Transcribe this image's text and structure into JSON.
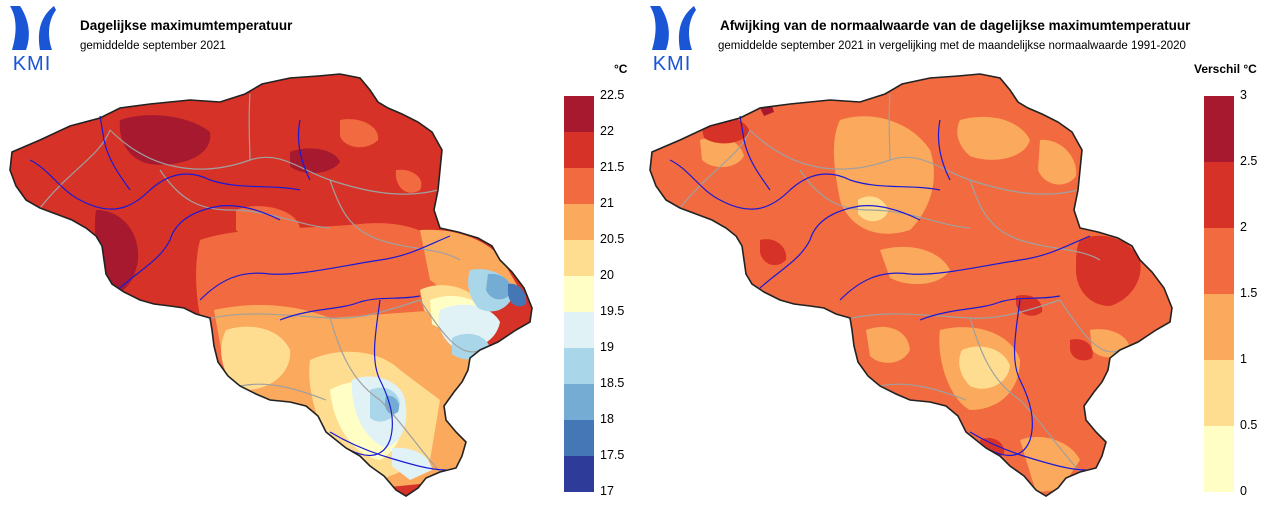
{
  "left": {
    "logo_text": "KMI",
    "title": "Dagelijkse maximumtemperatuur",
    "subtitle": "gemiddelde september 2021",
    "unit": "°C",
    "legend": {
      "labels": [
        "22.5",
        "22",
        "21.5",
        "21",
        "20.5",
        "20",
        "19.5",
        "19",
        "18.5",
        "18",
        "17.5",
        "17"
      ],
      "colors": [
        "#a6192e",
        "#d73227",
        "#f26a3f",
        "#fba95c",
        "#fedd90",
        "#ffffc5",
        "#e1f2f7",
        "#a9d6e8",
        "#75acd3",
        "#4576b6",
        "#2f3b99"
      ]
    }
  },
  "right": {
    "logo_text": "KMI",
    "title": "Afwijking van de normaalwaarde van de dagelijkse maximumtemperatuur",
    "subtitle": "gemiddelde september 2021 in vergelijking met de maandelijkse normaalwaarde 1991-2020",
    "unit": "Verschil °C",
    "legend": {
      "labels": [
        "3",
        "2.5",
        "2",
        "1.5",
        "1",
        "0.5",
        "0"
      ],
      "colors": [
        "#a6192e",
        "#d73227",
        "#f26a3f",
        "#fba95c",
        "#fedd90",
        "#ffffc5"
      ]
    }
  },
  "map_colors": {
    "dark_red": "#a6192e",
    "red": "#d73227",
    "orange": "#f26a3f",
    "light_orange": "#fba95c",
    "pale": "#fedd90",
    "cream": "#ffffc5",
    "ice": "#e1f2f7",
    "light_blue": "#a9d6e8",
    "mid_blue": "#75acd3",
    "blue": "#4576b6",
    "river": "#1a1ad6",
    "province": "#a0a0a0"
  }
}
